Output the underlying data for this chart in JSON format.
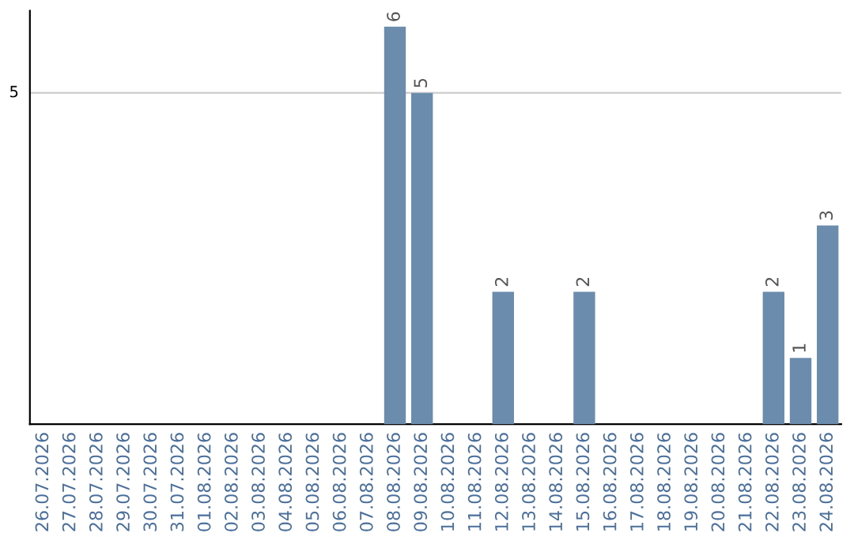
{
  "chart_data": {
    "type": "bar",
    "categories": [
      "26.07.2026",
      "27.07.2026",
      "28.07.2026",
      "29.07.2026",
      "30.07.2026",
      "31.07.2026",
      "01.08.2026",
      "02.08.2026",
      "03.08.2026",
      "04.08.2026",
      "05.08.2026",
      "06.08.2026",
      "07.08.2026",
      "08.08.2026",
      "09.08.2026",
      "10.08.2026",
      "11.08.2026",
      "12.08.2026",
      "13.08.2026",
      "14.08.2026",
      "15.08.2026",
      "16.08.2026",
      "17.08.2026",
      "18.08.2026",
      "19.08.2026",
      "20.08.2026",
      "21.08.2026",
      "22.08.2026",
      "23.08.2026",
      "24.08.2026"
    ],
    "values": [
      null,
      null,
      null,
      null,
      null,
      null,
      null,
      null,
      null,
      null,
      null,
      null,
      null,
      6,
      5,
      null,
      null,
      2,
      null,
      null,
      2,
      null,
      null,
      null,
      null,
      null,
      null,
      2,
      1,
      3
    ],
    "value_labels": [
      null,
      null,
      null,
      null,
      null,
      null,
      null,
      null,
      null,
      null,
      null,
      null,
      null,
      "6",
      "5",
      null,
      null,
      "2",
      null,
      null,
      "2",
      null,
      null,
      null,
      null,
      null,
      null,
      "2",
      "1",
      "3"
    ],
    "color": "#6b8cac",
    "ref_lines": [
      {
        "axis": "y",
        "value": 5,
        "label": "5",
        "color": "#cccccc"
      }
    ]
  }
}
